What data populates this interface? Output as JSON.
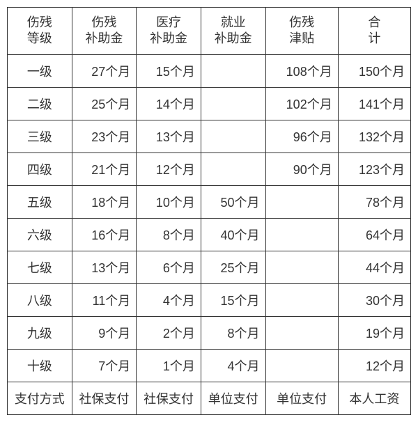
{
  "table": {
    "type": "table",
    "background_color": "#ffffff",
    "border_color": "#333333",
    "text_color": "#333333",
    "font_size": 18,
    "columns": [
      {
        "label_line1": "伤残",
        "label_line2": "等级",
        "width": "16%"
      },
      {
        "label_line1": "伤残",
        "label_line2": "补助金",
        "width": "16%"
      },
      {
        "label_line1": "医疗",
        "label_line2": "补助金",
        "width": "16%"
      },
      {
        "label_line1": "就业",
        "label_line2": "补助金",
        "width": "16%"
      },
      {
        "label_line1": "伤残",
        "label_line2": "津贴",
        "width": "18%"
      },
      {
        "label_line1": "合",
        "label_line2": "计",
        "width": "18%"
      }
    ],
    "rows": [
      {
        "level": "一级",
        "c1": "27个月",
        "c2": "15个月",
        "c3": "",
        "c4": "108个月",
        "c5": "150个月"
      },
      {
        "level": "二级",
        "c1": "25个月",
        "c2": "14个月",
        "c3": "",
        "c4": "102个月",
        "c5": "141个月"
      },
      {
        "level": "三级",
        "c1": "23个月",
        "c2": "13个月",
        "c3": "",
        "c4": "96个月",
        "c5": "132个月"
      },
      {
        "level": "四级",
        "c1": "21个月",
        "c2": "12个月",
        "c3": "",
        "c4": "90个月",
        "c5": "123个月"
      },
      {
        "level": "五级",
        "c1": "18个月",
        "c2": "10个月",
        "c3": "50个月",
        "c4": "",
        "c5": "78个月"
      },
      {
        "level": "六级",
        "c1": "16个月",
        "c2": "8个月",
        "c3": "40个月",
        "c4": "",
        "c5": "64个月"
      },
      {
        "level": "七级",
        "c1": "13个月",
        "c2": "6个月",
        "c3": "25个月",
        "c4": "",
        "c5": "44个月"
      },
      {
        "level": "八级",
        "c1": "11个月",
        "c2": "4个月",
        "c3": "15个月",
        "c4": "",
        "c5": "30个月"
      },
      {
        "level": "九级",
        "c1": "9个月",
        "c2": "2个月",
        "c3": "8个月",
        "c4": "",
        "c5": "19个月"
      },
      {
        "level": "十级",
        "c1": "7个月",
        "c2": "1个月",
        "c3": "4个月",
        "c4": "",
        "c5": "12个月"
      }
    ],
    "footer": {
      "label": "支付方式",
      "c1": "社保支付",
      "c2": "社保支付",
      "c3": "单位支付",
      "c4": "单位支付",
      "c5": "本人工资"
    }
  }
}
